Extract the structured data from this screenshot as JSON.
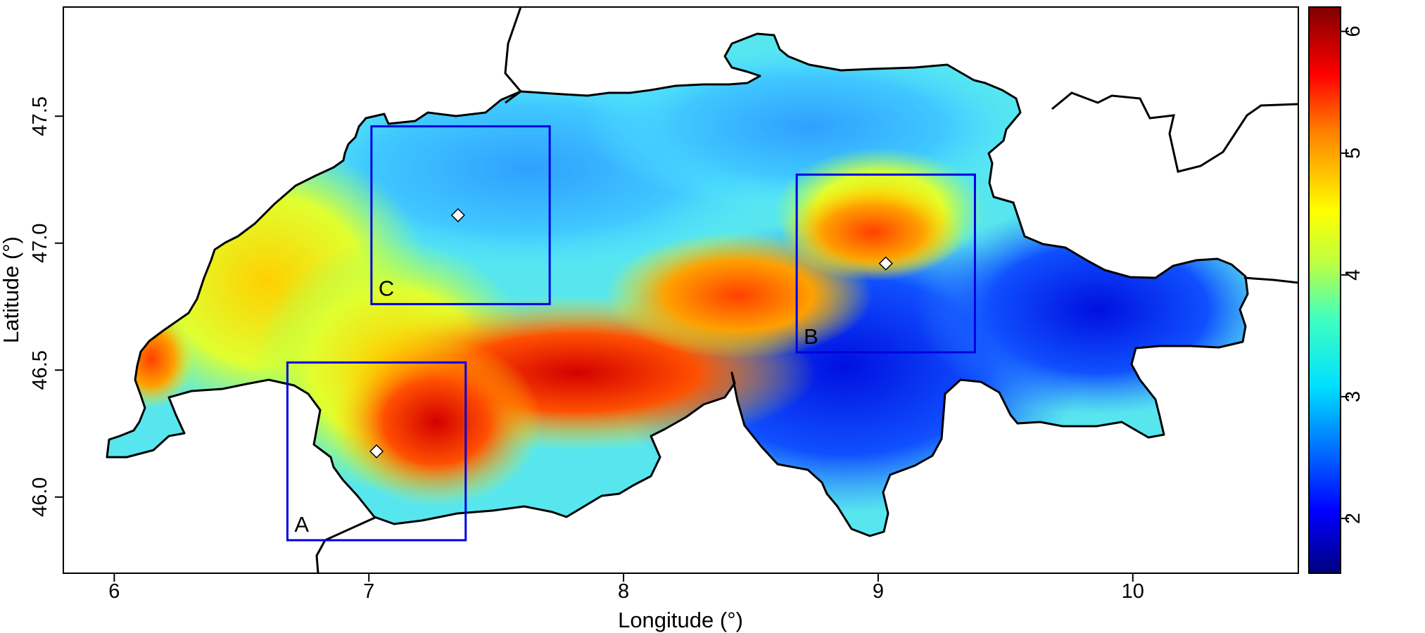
{
  "map": {
    "xlabel": "Longitude (°)",
    "ylabel": "Latitude (°)",
    "xlim": [
      5.8,
      10.65
    ],
    "ylim": [
      45.7,
      47.93
    ],
    "x_ticks": [
      {
        "value": 6,
        "label": "6"
      },
      {
        "value": 7,
        "label": "7"
      },
      {
        "value": 8,
        "label": "8"
      },
      {
        "value": 9,
        "label": "9"
      },
      {
        "value": 10,
        "label": "10"
      }
    ],
    "y_ticks": [
      {
        "value": 46.0,
        "label": "46.0"
      },
      {
        "value": 46.5,
        "label": "46.5"
      },
      {
        "value": 47.0,
        "label": "47.0"
      },
      {
        "value": 47.5,
        "label": "47.5"
      }
    ],
    "regions": [
      {
        "label": "A",
        "lon": [
          6.68,
          7.38
        ],
        "lat": [
          45.83,
          46.53
        ],
        "site": [
          7.03,
          46.18
        ],
        "color": "#0000dd"
      },
      {
        "label": "B",
        "lon": [
          8.68,
          9.38
        ],
        "lat": [
          46.57,
          47.27
        ],
        "site": [
          9.03,
          46.92
        ],
        "color": "#0000dd"
      },
      {
        "label": "C",
        "lon": [
          7.01,
          7.71
        ],
        "lat": [
          46.76,
          47.46
        ],
        "site": [
          7.35,
          47.11
        ],
        "color": "#0000dd"
      }
    ]
  },
  "colorbar": {
    "range": [
      1.55,
      6.2
    ],
    "ticks": [
      {
        "value": 2,
        "label": "2"
      },
      {
        "value": 3,
        "label": "3"
      },
      {
        "value": 4,
        "label": "4"
      },
      {
        "value": 5,
        "label": "5"
      },
      {
        "value": 6,
        "label": "6"
      }
    ],
    "colors": [
      "#00007f",
      "#0000ff",
      "#007fff",
      "#00ffff",
      "#7fff7f",
      "#ffff00",
      "#ff7f00",
      "#ff0000",
      "#7f0000"
    ]
  }
}
